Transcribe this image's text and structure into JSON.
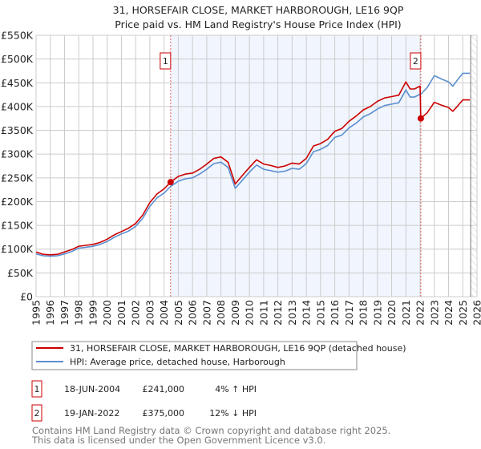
{
  "chart_data": {
    "type": "line",
    "title": "31, HORSEFAIR CLOSE, MARKET HARBOROUGH, LE16 9QP",
    "subtitle": "Price paid vs. HM Land Registry's House Price Index (HPI)",
    "xlabel": "",
    "ylabel": "",
    "xlim": [
      1995,
      2026
    ],
    "ylim": [
      0,
      550000
    ],
    "grid": true,
    "y_ticks": [
      0,
      50000,
      100000,
      150000,
      200000,
      250000,
      300000,
      350000,
      400000,
      450000,
      500000,
      550000
    ],
    "y_tick_labels": [
      "£0",
      "£50K",
      "£100K",
      "£150K",
      "£200K",
      "£250K",
      "£300K",
      "£350K",
      "£400K",
      "£450K",
      "£500K",
      "£550K"
    ],
    "x_tick_labels": [
      "1995",
      "1996",
      "1997",
      "1998",
      "1999",
      "2000",
      "2001",
      "2002",
      "2003",
      "2004",
      "2005",
      "2006",
      "2007",
      "2008",
      "2009",
      "2010",
      "2011",
      "2012",
      "2013",
      "2014",
      "2015",
      "2016",
      "2017",
      "2018",
      "2019",
      "2020",
      "2021",
      "2022",
      "2023",
      "2024",
      "2025",
      "2026"
    ],
    "x": [
      1995,
      1995.5,
      1996,
      1996.5,
      1997,
      1997.5,
      1998,
      1998.5,
      1999,
      1999.5,
      2000,
      2000.5,
      2001,
      2001.5,
      2002,
      2002.5,
      2003,
      2003.5,
      2004,
      2004.46,
      2005,
      2005.5,
      2006,
      2006.5,
      2007,
      2007.5,
      2008,
      2008.5,
      2009,
      2009.5,
      2010,
      2010.5,
      2011,
      2011.5,
      2012,
      2012.5,
      2013,
      2013.5,
      2014,
      2014.5,
      2015,
      2015.5,
      2016,
      2016.5,
      2017,
      2017.5,
      2018,
      2018.5,
      2019,
      2019.5,
      2020,
      2020.5,
      2021,
      2021.3,
      2021.6,
      2022.0,
      2022.05,
      2022.5,
      2023,
      2023.5,
      2024,
      2024.3,
      2024.6,
      2025,
      2025.5
    ],
    "series": [
      {
        "name": "31, HORSEFAIR CLOSE, MARKET HARBOROUGH, LE16 9QP (detached house)",
        "color": "#cc0000",
        "values": [
          94000,
          89000,
          88000,
          89000,
          94000,
          99000,
          106000,
          108000,
          110000,
          114000,
          121000,
          130000,
          137000,
          144000,
          154000,
          172000,
          198000,
          216000,
          227000,
          241000,
          253000,
          258000,
          260000,
          268000,
          279000,
          291000,
          294000,
          283000,
          237000,
          255000,
          272000,
          288000,
          279000,
          276000,
          272000,
          275000,
          281000,
          279000,
          291000,
          317000,
          322000,
          331000,
          348000,
          354000,
          369000,
          380000,
          393000,
          400000,
          411000,
          418000,
          421000,
          424000,
          452000,
          437000,
          437000,
          443000,
          375000,
          387000,
          409000,
          403000,
          398000,
          390000,
          400000,
          414000,
          414000
        ]
      },
      {
        "name": "HPI: Average price, detached house, Harborough",
        "color": "#5b8fd0",
        "values": [
          90000,
          86000,
          85000,
          86000,
          90000,
          95000,
          102000,
          104000,
          106000,
          110000,
          116000,
          125000,
          132000,
          138000,
          148000,
          165000,
          190000,
          208000,
          218000,
          232000,
          243000,
          248000,
          250000,
          258000,
          268000,
          280000,
          283000,
          272000,
          228000,
          245000,
          262000,
          277000,
          268000,
          265000,
          262000,
          264000,
          270000,
          268000,
          280000,
          305000,
          310000,
          318000,
          335000,
          340000,
          355000,
          365000,
          378000,
          385000,
          395000,
          402000,
          405000,
          408000,
          435000,
          420000,
          420000,
          426000,
          426000,
          440000,
          465000,
          458000,
          452000,
          443000,
          455000,
          470000,
          470000
        ]
      }
    ],
    "sales": [
      {
        "label": "1",
        "x": 2004.46,
        "value": 241000,
        "date": "18-JUN-2004",
        "price": "£241,000",
        "hpi_diff": "4% ↑ HPI"
      },
      {
        "label": "2",
        "x": 2022.05,
        "value": 375000,
        "date": "19-JAN-2022",
        "price": "£375,000",
        "hpi_diff": "12% ↓ HPI"
      }
    ],
    "data_end": 2025.5,
    "legend_placement": "below"
  },
  "footer": {
    "line1": "Contains HM Land Registry data © Crown copyright and database right 2025.",
    "line2": "This data is licensed under the Open Government Licence v3.0."
  }
}
